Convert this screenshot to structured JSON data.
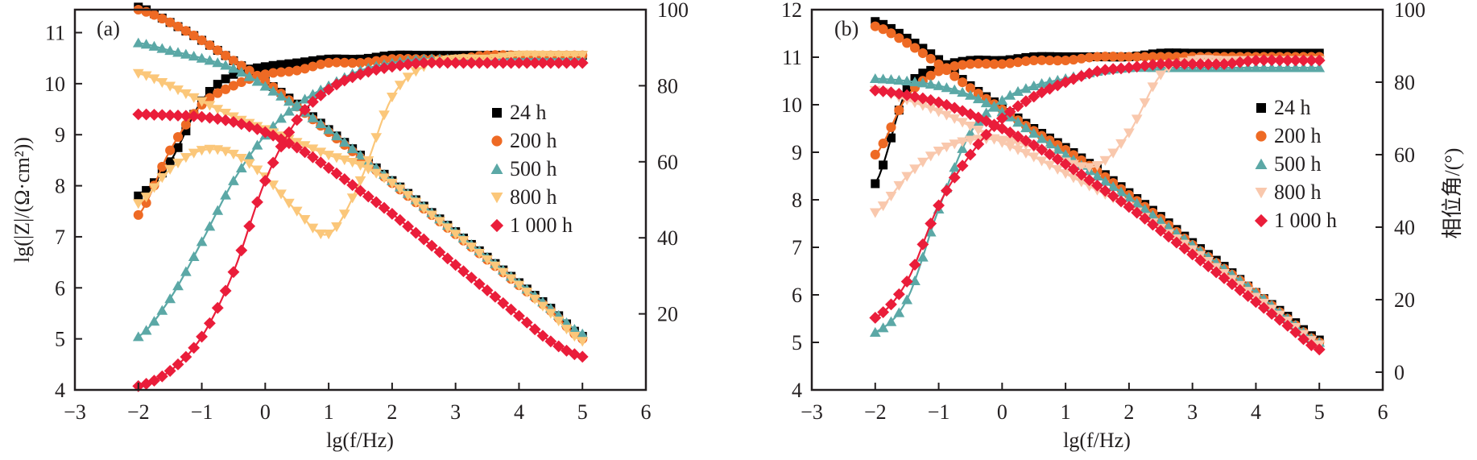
{
  "colors": {
    "axis": "#231f20",
    "24h": "#000000",
    "200h": "#ee6a24",
    "500h": "#5ba8a6",
    "800h_a": "#fbc77a",
    "800h_b": "#f9c8ad",
    "1000h": "#ea1d3a"
  },
  "chart_data": [
    {
      "id": "a",
      "type": "scatter",
      "panel_label": "(a)",
      "title": "",
      "xlabel": "lg(f/Hz)",
      "ylabel_left": "lg(|Z|/(Ω·cm²))",
      "ylabel_right": "",
      "xlim": [
        -3,
        6
      ],
      "ylim_left": [
        4,
        11.45
      ],
      "ylim_right": [
        0,
        100
      ],
      "xticks": [
        "−3",
        "−2",
        "−1",
        "0",
        "1",
        "2",
        "3",
        "4",
        "5",
        "6"
      ],
      "xtick_values": [
        -3,
        -2,
        -1,
        0,
        1,
        2,
        3,
        4,
        5,
        6
      ],
      "yticks_left": [
        "4",
        "5",
        "6",
        "7",
        "8",
        "9",
        "10",
        "11"
      ],
      "ytick_left_values": [
        4,
        5,
        6,
        7,
        8,
        9,
        10,
        11
      ],
      "yticks_right": [
        "20",
        "40",
        "60",
        "80",
        "100"
      ],
      "ytick_right_values": [
        20,
        40,
        60,
        80,
        100
      ],
      "legend": {
        "placement": "right-middle",
        "entries": [
          "24 h",
          "200 h",
          "500 h",
          "800 h",
          "1 000 h"
        ]
      },
      "x": [
        -2.0,
        -1.5,
        -1.0,
        -0.5,
        0.0,
        0.5,
        1.0,
        1.5,
        2.0,
        2.5,
        3.0,
        3.5,
        4.0,
        4.5,
        5.0
      ],
      "series": [
        {
          "name": "24 h",
          "marker": "square",
          "color_key": "24h",
          "modulus": [
            11.5,
            11.2,
            10.85,
            10.45,
            10.05,
            9.6,
            9.1,
            8.6,
            8.1,
            7.6,
            7.1,
            6.6,
            6.1,
            5.6,
            5.05
          ],
          "phase": [
            51,
            60,
            76,
            83,
            85,
            86,
            87,
            87,
            88,
            88,
            88,
            88,
            88,
            88,
            88
          ]
        },
        {
          "name": "200 h",
          "marker": "circle",
          "color_key": "200h",
          "modulus": [
            11.45,
            11.2,
            10.85,
            10.45,
            10.05,
            9.55,
            9.05,
            8.55,
            8.05,
            7.55,
            7.05,
            6.55,
            6.05,
            5.55,
            5.0
          ],
          "phase": [
            46,
            63,
            75,
            80,
            83,
            84,
            86,
            86,
            87,
            87,
            87,
            88,
            88,
            88,
            88
          ]
        },
        {
          "name": "500 h",
          "marker": "triangle-up",
          "color_key": "500h",
          "modulus": [
            10.8,
            10.65,
            10.5,
            10.3,
            9.95,
            9.55,
            9.1,
            8.6,
            8.1,
            7.6,
            7.1,
            6.6,
            6.1,
            5.6,
            5.1
          ],
          "phase": [
            14,
            24,
            39,
            55,
            67,
            75,
            80,
            84,
            86,
            87,
            87,
            87,
            87,
            87,
            87
          ]
        },
        {
          "name": "800 h",
          "marker": "triangle-down",
          "color_key": "800h_a",
          "modulus": [
            10.2,
            9.95,
            9.65,
            9.35,
            9.1,
            8.85,
            8.6,
            8.4,
            8.05,
            7.55,
            7.05,
            6.55,
            6.05,
            5.5,
            4.95
          ],
          "phase": [
            49,
            58,
            63,
            62,
            56,
            47,
            41,
            55,
            77,
            85,
            87,
            87,
            88,
            88,
            88
          ]
        },
        {
          "name": "1 000 h",
          "marker": "diamond",
          "color_key": "1000h",
          "modulus": [
            9.4,
            9.38,
            9.35,
            9.25,
            9.05,
            8.75,
            8.35,
            7.9,
            7.45,
            6.95,
            6.45,
            5.95,
            5.45,
            4.95,
            4.65
          ],
          "phase": [
            1,
            5,
            14,
            31,
            55,
            71,
            79,
            83,
            85,
            86,
            86,
            86,
            86,
            86,
            86
          ]
        }
      ]
    },
    {
      "id": "b",
      "type": "scatter",
      "panel_label": "(b)",
      "title": "",
      "xlabel": "lg(f/Hz)",
      "ylabel_left": "",
      "ylabel_right": "相位角/(°)",
      "xlim": [
        -3,
        6
      ],
      "ylim_left": [
        4,
        12
      ],
      "ylim_right": [
        -4.9,
        100
      ],
      "xticks": [
        "−3",
        "−2",
        "−1",
        "0",
        "1",
        "2",
        "3",
        "4",
        "5",
        "6"
      ],
      "xtick_values": [
        -3,
        -2,
        -1,
        0,
        1,
        2,
        3,
        4,
        5,
        6
      ],
      "yticks_left": [
        "4",
        "5",
        "6",
        "7",
        "8",
        "9",
        "10",
        "11",
        "12"
      ],
      "ytick_left_values": [
        4,
        5,
        6,
        7,
        8,
        9,
        10,
        11,
        12
      ],
      "yticks_right": [
        "0",
        "20",
        "40",
        "60",
        "80",
        "100"
      ],
      "ytick_right_values": [
        0,
        20,
        40,
        60,
        80,
        100
      ],
      "legend": {
        "placement": "right-middle",
        "entries": [
          "24 h",
          "200 h",
          "500 h",
          "800 h",
          "1 000 h"
        ]
      },
      "x": [
        -2.0,
        -1.5,
        -1.0,
        -0.5,
        0.0,
        0.5,
        1.0,
        1.5,
        2.0,
        2.5,
        3.0,
        3.5,
        4.0,
        4.5,
        5.0
      ],
      "series": [
        {
          "name": "24 h",
          "marker": "square",
          "color_key": "24h",
          "modulus": [
            11.75,
            11.4,
            10.95,
            10.4,
            9.95,
            9.5,
            9.1,
            8.65,
            8.15,
            7.65,
            7.1,
            6.6,
            6.05,
            5.55,
            5.05
          ],
          "phase": [
            52,
            78,
            84,
            86,
            86,
            87,
            87,
            87,
            87,
            88,
            88,
            88,
            88,
            88,
            88
          ]
        },
        {
          "name": "200 h",
          "marker": "circle",
          "color_key": "200h",
          "modulus": [
            11.65,
            11.3,
            10.85,
            10.35,
            9.9,
            9.45,
            9.05,
            8.6,
            8.1,
            7.6,
            7.05,
            6.55,
            6.05,
            5.5,
            5.0
          ],
          "phase": [
            60,
            76,
            83,
            85,
            85,
            86,
            86,
            87,
            87,
            87,
            87,
            87,
            87,
            87,
            87
          ]
        },
        {
          "name": "500 h",
          "marker": "triangle-up",
          "color_key": "500h",
          "modulus": [
            10.55,
            10.5,
            10.4,
            10.2,
            9.85,
            9.4,
            8.95,
            8.5,
            8.05,
            7.55,
            7.05,
            6.55,
            6.05,
            5.5,
            5.0
          ],
          "phase": [
            11,
            20,
            45,
            66,
            75,
            79,
            81,
            83,
            84,
            84,
            84,
            84,
            84,
            84,
            84
          ]
        },
        {
          "name": "800 h",
          "marker": "triangle-down",
          "color_key": "800h_b",
          "modulus": [
            10.3,
            10.1,
            9.85,
            9.55,
            9.2,
            8.9,
            8.55,
            8.2,
            7.85,
            7.4,
            6.95,
            6.45,
            5.95,
            5.45,
            4.95
          ],
          "phase": [
            44,
            54,
            61,
            64,
            64,
            62,
            58,
            57,
            66,
            82,
            86,
            86,
            86,
            86,
            86
          ]
        },
        {
          "name": "1 000 h",
          "marker": "diamond",
          "color_key": "1000h",
          "modulus": [
            10.3,
            10.2,
            10.05,
            9.8,
            9.5,
            9.15,
            8.75,
            8.3,
            7.85,
            7.35,
            6.85,
            6.35,
            5.85,
            5.35,
            4.85
          ],
          "phase": [
            15,
            25,
            46,
            60,
            70,
            76,
            80,
            83,
            84,
            85,
            85,
            85,
            86,
            86,
            86
          ]
        }
      ]
    }
  ]
}
